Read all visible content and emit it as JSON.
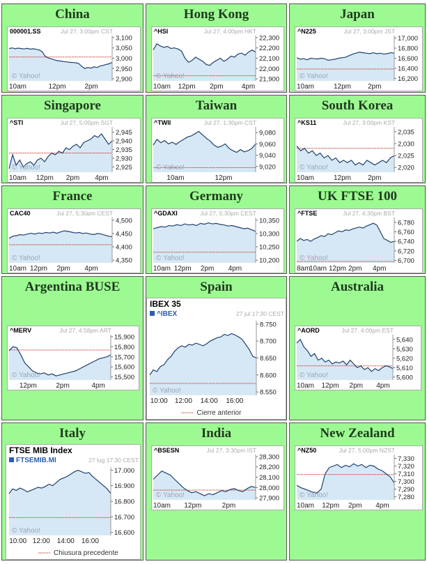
{
  "watermark": "© Yahoo!",
  "colors": {
    "cell_bg": "#9dfa92",
    "line": "#1f3f6e",
    "fill": "#d6e8f5",
    "prev_close": "#c0392b"
  },
  "markets": [
    {
      "id": "china",
      "title": "China",
      "symbol": "000001.SS",
      "date": "Jul 27, 3:00pm CST",
      "chart_data": {
        "type": "area",
        "yticks": [
          "3,100",
          "3,050",
          "3,000",
          "2,950",
          "2,900"
        ],
        "ylim": [
          2890,
          3110
        ],
        "xticks": [
          {
            "label": "10am",
            "t": 0.0
          },
          {
            "label": "12pm",
            "t": 0.45
          },
          {
            "label": "2pm",
            "t": 0.8
          }
        ],
        "prev_close": 3006,
        "values": [
          3047,
          3050,
          3046,
          3049,
          3047,
          3045,
          3048,
          3044,
          3046,
          3043,
          3040,
          3030,
          3008,
          3001,
          2997,
          2992,
          2988,
          2986,
          2984,
          2982,
          2980,
          2979,
          2978,
          2974,
          2960,
          2950,
          2955,
          2952,
          2958,
          2955,
          2962,
          2965,
          2970,
          2973,
          2980
        ]
      }
    },
    {
      "id": "hongkong",
      "title": "Hong Kong",
      "symbol": "^HSI",
      "date": "Jul 27, 4:00pm HKT",
      "chart_data": {
        "type": "area",
        "yticks": [
          "22,300",
          "22,200",
          "22,100",
          "22,000",
          "21,900"
        ],
        "ylim": [
          21880,
          22320
        ],
        "xticks": [
          {
            "label": "10am",
            "t": 0.0
          },
          {
            "label": "12pm",
            "t": 0.31
          },
          {
            "label": "2pm",
            "t": 0.62
          },
          {
            "label": "4pm",
            "t": 0.93
          }
        ],
        "prev_close": 21930,
        "values": [
          22180,
          22240,
          22220,
          22205,
          22215,
          22195,
          22200,
          22190,
          22170,
          22100,
          22060,
          22080,
          22110,
          22090,
          22070,
          22040,
          22030,
          22060,
          22080,
          22100,
          22070,
          22090,
          22120,
          22110,
          22140,
          22150,
          22130,
          22160,
          22180,
          22160
        ]
      }
    },
    {
      "id": "japan",
      "title": "Japan",
      "symbol": "^N225",
      "date": "Jul 27, 3:00pm JST",
      "chart_data": {
        "type": "area",
        "yticks": [
          "17,000",
          "16,800",
          "16,600",
          "16,400",
          "16,200"
        ],
        "ylim": [
          16150,
          17050
        ],
        "xticks": [
          {
            "label": "10am",
            "t": 0.0
          },
          {
            "label": "12pm",
            "t": 0.45
          },
          {
            "label": "2pm",
            "t": 0.8
          }
        ],
        "prev_close": 16385,
        "values": [
          16610,
          16580,
          16590,
          16570,
          16600,
          16590,
          16585,
          16600,
          16590,
          16560,
          16570,
          16580,
          16600,
          16610,
          16620,
          16650,
          16680,
          16700,
          16720,
          16710,
          16700,
          16690,
          16710,
          16690,
          16700,
          16680,
          16690,
          16710,
          16700
        ]
      }
    },
    {
      "id": "singapore",
      "title": "Singapore",
      "symbol": "^STI",
      "date": "Jul 27, 5:00pm SGT",
      "chart_data": {
        "type": "area",
        "yticks": [
          "2,945",
          "2,940",
          "2,935",
          "2,930",
          "2,925"
        ],
        "ylim": [
          2922,
          2948
        ],
        "xticks": [
          {
            "label": "10am",
            "t": 0.0
          },
          {
            "label": "12pm",
            "t": 0.33
          },
          {
            "label": "2pm",
            "t": 0.62
          },
          {
            "label": "4pm",
            "t": 0.9
          }
        ],
        "prev_close": 2933,
        "values": [
          2924,
          2932,
          2926,
          2929,
          2925,
          2927,
          2928,
          2926,
          2929,
          2930,
          2928,
          2931,
          2933,
          2932,
          2934,
          2933,
          2936,
          2935,
          2937,
          2938,
          2936,
          2939,
          2940,
          2941,
          2943,
          2942,
          2944,
          2941,
          2938,
          2940
        ]
      }
    },
    {
      "id": "taiwan",
      "title": "Taiwan",
      "symbol": "^TWII",
      "date": "Jul 27, 1:30pm CST",
      "chart_data": {
        "type": "area",
        "yticks": [
          "9,080",
          "9,060",
          "9,040",
          "9,020"
        ],
        "ylim": [
          9010,
          9090
        ],
        "xticks": [
          {
            "label": "10am",
            "t": 0.2
          },
          {
            "label": "12pm",
            "t": 0.67
          }
        ],
        "prev_close": 9018,
        "values": [
          9058,
          9068,
          9062,
          9066,
          9060,
          9063,
          9059,
          9064,
          9068,
          9072,
          9074,
          9078,
          9082,
          9076,
          9070,
          9065,
          9058,
          9054,
          9056,
          9060,
          9052,
          9048,
          9045,
          9050,
          9046,
          9048,
          9052,
          9060
        ]
      }
    },
    {
      "id": "southkorea",
      "title": "South Korea",
      "symbol": "^KS11",
      "date": "Jul 27, 3:00pm KST",
      "chart_data": {
        "type": "area",
        "yticks": [
          "2,035",
          "2,030",
          "2,025",
          "2,020"
        ],
        "ylim": [
          2018,
          2037
        ],
        "xticks": [
          {
            "label": "10am",
            "t": 0.0
          },
          {
            "label": "12pm",
            "t": 0.45
          },
          {
            "label": "2pm",
            "t": 0.8
          }
        ],
        "prev_close": 2028,
        "values": [
          2029,
          2027,
          2028,
          2026,
          2027,
          2025,
          2026,
          2024,
          2025,
          2023,
          2024,
          2022,
          2023,
          2022,
          2023,
          2021,
          2022,
          2021,
          2023,
          2022,
          2021,
          2022,
          2023,
          2022,
          2024,
          2025
        ]
      }
    },
    {
      "id": "france",
      "title": "France",
      "symbol": "CAC40",
      "date": "Jul 27, 5:30pm CEST",
      "chart_data": {
        "type": "area",
        "yticks": [
          "4,500",
          "4,450",
          "4,400",
          "4,350"
        ],
        "ylim": [
          4340,
          4510
        ],
        "xticks": [
          {
            "label": "10am",
            "t": 0.0
          },
          {
            "label": "12pm",
            "t": 0.27
          },
          {
            "label": "2pm",
            "t": 0.53
          },
          {
            "label": "4pm",
            "t": 0.8
          }
        ],
        "prev_close": 4408,
        "values": [
          4432,
          4440,
          4442,
          4446,
          4444,
          4448,
          4451,
          4448,
          4452,
          4450,
          4454,
          4452,
          4455,
          4451,
          4456,
          4460,
          4458,
          4455,
          4452,
          4454,
          4450,
          4452,
          4448,
          4446,
          4450,
          4448,
          4444,
          4440,
          4438
        ]
      }
    },
    {
      "id": "germany",
      "title": "Germany",
      "symbol": "^GDAXI",
      "date": "Jul 27, 5:30pm CEST",
      "chart_data": {
        "type": "area",
        "yticks": [
          "10,350",
          "10,300",
          "10,250",
          "10,200"
        ],
        "ylim": [
          10190,
          10360
        ],
        "xticks": [
          {
            "label": "10am",
            "t": 0.0
          },
          {
            "label": "12pm",
            "t": 0.27
          },
          {
            "label": "2pm",
            "t": 0.53
          },
          {
            "label": "4pm",
            "t": 0.8
          }
        ],
        "prev_close": 10230,
        "values": [
          10318,
          10322,
          10326,
          10324,
          10330,
          10328,
          10333,
          10330,
          10336,
          10332,
          10334,
          10330,
          10338,
          10335,
          10340,
          10336,
          10338,
          10334,
          10332,
          10328,
          10330,
          10326,
          10322,
          10318,
          10320,
          10314,
          10308
        ]
      }
    },
    {
      "id": "uk",
      "title": "UK FTSE 100",
      "symbol": "^FTSE",
      "date": "Jul 27, 4:30pm BST",
      "chart_data": {
        "type": "area",
        "yticks": [
          "6,780",
          "6,760",
          "6,740",
          "6,720",
          "6,700"
        ],
        "ylim": [
          6695,
          6790
        ],
        "xticks": [
          {
            "label": "8am",
            "t": 0.0
          },
          {
            "label": "10am",
            "t": 0.2
          },
          {
            "label": "12pm",
            "t": 0.4
          },
          {
            "label": "2pm",
            "t": 0.6
          },
          {
            "label": "4pm",
            "t": 0.85
          }
        ],
        "prev_close": 6698,
        "values": [
          6740,
          6746,
          6742,
          6744,
          6740,
          6745,
          6748,
          6752,
          6750,
          6756,
          6754,
          6758,
          6762,
          6760,
          6764,
          6763,
          6766,
          6768,
          6770,
          6768,
          6772,
          6775,
          6778,
          6774,
          6760,
          6746,
          6742,
          6738,
          6740
        ]
      }
    },
    {
      "id": "argentina",
      "title": "Argentina BUSE",
      "symbol": "^MERV",
      "date": "Jul 27, 4:58pm ART",
      "chart_data": {
        "type": "area",
        "yticks": [
          "15,900",
          "15,800",
          "15,700",
          "15,600",
          "15,500"
        ],
        "ylim": [
          15470,
          15920
        ],
        "xticks": [
          {
            "label": "12pm",
            "t": 0.17
          },
          {
            "label": "2pm",
            "t": 0.53
          },
          {
            "label": "4pm",
            "t": 0.88
          }
        ],
        "prev_close": 15768,
        "values": [
          15760,
          15800,
          15790,
          15720,
          15640,
          15600,
          15560,
          15540,
          15530,
          15540,
          15520,
          15530,
          15510,
          15520,
          15530,
          15540,
          15550,
          15560,
          15580,
          15600,
          15620,
          15640,
          15660,
          15680,
          15690,
          15700,
          15720
        ]
      }
    },
    {
      "id": "spain",
      "title": "Spain",
      "symbol": "^IBEX",
      "name": "IBEX 35",
      "date": "27 jul 17:30 CEST",
      "legend": "Cierre anterior",
      "chart_data": {
        "type": "area",
        "yticks": [
          "8.750",
          "8.700",
          "8.650",
          "8.600",
          "8.550"
        ],
        "ylim": [
          8540,
          8760
        ],
        "xticks": [
          {
            "label": "10:00",
            "t": 0.07
          },
          {
            "label": "12:00",
            "t": 0.3
          },
          {
            "label": "14:00",
            "t": 0.54
          },
          {
            "label": "16:00",
            "t": 0.78
          }
        ],
        "prev_close": 8575,
        "values": [
          8600,
          8615,
          8610,
          8625,
          8630,
          8645,
          8655,
          8670,
          8680,
          8686,
          8682,
          8690,
          8688,
          8694,
          8690,
          8686,
          8692,
          8700,
          8705,
          8710,
          8712,
          8720,
          8716,
          8722,
          8718,
          8712,
          8705,
          8690,
          8675,
          8655,
          8650
        ]
      }
    },
    {
      "id": "australia",
      "title": "Australia",
      "symbol": "^AORD",
      "date": "Jul 27, 4:00pm EST",
      "chart_data": {
        "type": "area",
        "yticks": [
          "5,640",
          "5,630",
          "5,620",
          "5,610",
          "5,600"
        ],
        "ylim": [
          5597,
          5645
        ],
        "xticks": [
          {
            "label": "10am",
            "t": 0.0
          },
          {
            "label": "12pm",
            "t": 0.33
          },
          {
            "label": "2pm",
            "t": 0.62
          },
          {
            "label": "4pm",
            "t": 0.9
          }
        ],
        "prev_close": 5612,
        "values": [
          5636,
          5640,
          5632,
          5628,
          5622,
          5625,
          5618,
          5620,
          5616,
          5618,
          5614,
          5616,
          5615,
          5617,
          5613,
          5618,
          5614,
          5610,
          5612,
          5608,
          5610,
          5606,
          5609,
          5607,
          5610,
          5612,
          5611,
          5609
        ]
      }
    },
    {
      "id": "italy",
      "title": "Italy",
      "symbol": "FTSEMIB.MI",
      "name": "FTSE MIB Index",
      "date": "27 lug 17:30 CEST",
      "legend": "Chiusura precedente",
      "chart_data": {
        "type": "area",
        "yticks": [
          "17.000",
          "16.900",
          "16.800",
          "16.700",
          "16.600"
        ],
        "ylim": [
          16580,
          17020
        ],
        "xticks": [
          {
            "label": "10:00",
            "t": 0.07
          },
          {
            "label": "12:00",
            "t": 0.3
          },
          {
            "label": "14:00",
            "t": 0.54
          },
          {
            "label": "16:00",
            "t": 0.78
          }
        ],
        "prev_close": 16695,
        "values": [
          16850,
          16880,
          16870,
          16885,
          16875,
          16860,
          16870,
          16880,
          16890,
          16885,
          16895,
          16910,
          16900,
          16920,
          16940,
          16950,
          16960,
          16975,
          16990,
          17000,
          16990,
          16980,
          16985,
          16960,
          16940,
          16920,
          16900,
          16880,
          16850
        ]
      }
    },
    {
      "id": "india",
      "title": "India",
      "symbol": "^BSESN",
      "date": "Jul 27, 3:30pm IST",
      "chart_data": {
        "type": "area",
        "yticks": [
          "28,300",
          "28,200",
          "28,100",
          "28,000",
          "27,900"
        ],
        "ylim": [
          27880,
          28320
        ],
        "xticks": [
          {
            "label": "10am",
            "t": 0.0
          },
          {
            "label": "12pm",
            "t": 0.37
          },
          {
            "label": "2pm",
            "t": 0.74
          }
        ],
        "prev_close": 27975,
        "values": [
          28080,
          28120,
          28160,
          28140,
          28120,
          28080,
          28040,
          28000,
          27970,
          27950,
          27960,
          27940,
          27920,
          27940,
          27930,
          27950,
          27970,
          27960,
          27980,
          27990,
          27970,
          27960,
          27990,
          28010,
          28000
        ]
      }
    },
    {
      "id": "newzealand",
      "title": "New Zealand",
      "symbol": "^NZ50",
      "date": "Jul 27, 5:00pm NZST",
      "chart_data": {
        "type": "area",
        "yticks": [
          "7,330",
          "7,320",
          "7,310",
          "7,300",
          "7,290",
          "7,280"
        ],
        "ylim": [
          7276,
          7335
        ],
        "xticks": [
          {
            "label": "10am",
            "t": 0.0
          },
          {
            "label": "12pm",
            "t": 0.33
          },
          {
            "label": "2pm",
            "t": 0.6
          },
          {
            "label": "4pm",
            "t": 0.88
          }
        ],
        "prev_close": 7309,
        "values": [
          7295,
          7292,
          7290,
          7288,
          7286,
          7285,
          7290,
          7310,
          7318,
          7320,
          7322,
          7318,
          7321,
          7319,
          7323,
          7320,
          7322,
          7318,
          7321,
          7320,
          7316,
          7314,
          7310,
          7306,
          7298
        ]
      }
    }
  ]
}
